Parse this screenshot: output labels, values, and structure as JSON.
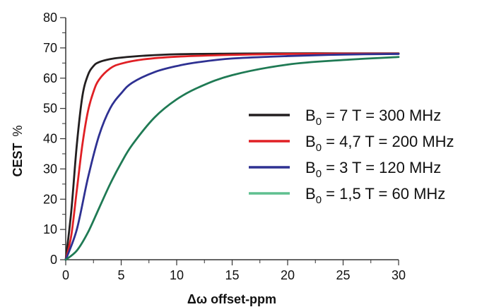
{
  "chart_data": {
    "type": "line",
    "xlabel": "Δω offset-ppm",
    "ylabel_main": "CEST",
    "ylabel_unit": "%",
    "xlim": [
      0,
      30
    ],
    "ylim": [
      0,
      80
    ],
    "x_ticks": [
      0,
      5,
      10,
      15,
      20,
      25,
      30
    ],
    "y_ticks": [
      0,
      10,
      20,
      30,
      40,
      50,
      60,
      70,
      80
    ],
    "grid": false,
    "legend_position": "right",
    "series": [
      {
        "name": "B0 = 7 T = 300 MHz",
        "label_pre": "B",
        "label_sub": "0",
        "label_post": " = 7 T = 300 MHz",
        "color": "#231f20",
        "x": [
          0,
          0.5,
          1,
          1.5,
          2,
          2.5,
          3,
          4,
          5,
          7,
          10,
          15,
          20,
          25,
          30
        ],
        "y": [
          0,
          16,
          38,
          54,
          61,
          64,
          65.3,
          66.3,
          66.8,
          67.4,
          67.9,
          68.1,
          68.2,
          68.2,
          68.2
        ]
      },
      {
        "name": "B0 = 4,7 T = 200 MHz",
        "label_pre": "B",
        "label_sub": "0",
        "label_post": " = 4,7 T = 200 MHz",
        "color": "#e02025",
        "x": [
          0,
          0.5,
          1,
          1.5,
          2,
          2.5,
          3,
          4,
          5,
          7,
          10,
          15,
          20,
          25,
          30
        ],
        "y": [
          0,
          8,
          23,
          38,
          49,
          55.5,
          59.5,
          63.2,
          64.8,
          66.2,
          67.1,
          67.7,
          68,
          68.1,
          68.1
        ]
      },
      {
        "name": "B0 = 3 T = 120 MHz",
        "label_pre": "B",
        "label_sub": "0",
        "label_post": " = 3 T = 120 MHz",
        "color": "#2e3192",
        "x": [
          0,
          1,
          2,
          3,
          4,
          5,
          6,
          8,
          10,
          12,
          15,
          20,
          25,
          30
        ],
        "y": [
          0,
          10,
          27,
          41,
          50,
          55,
          58.5,
          62,
          64,
          65.3,
          66.5,
          67.3,
          67.8,
          68
        ]
      },
      {
        "name": "B0 = 1,5 T = 60 MHz",
        "label_pre": "B",
        "label_sub": "0",
        "label_post": " = 1,5 T = 60 MHz",
        "color": "#1f7a54",
        "legend_color": "#5fbf8f",
        "x": [
          0,
          1,
          2,
          3,
          4,
          5,
          6,
          8,
          10,
          12,
          15,
          20,
          25,
          30
        ],
        "y": [
          0,
          3,
          9,
          17,
          25,
          32,
          38,
          47,
          53,
          57,
          61,
          64.5,
          66,
          67
        ]
      }
    ]
  }
}
